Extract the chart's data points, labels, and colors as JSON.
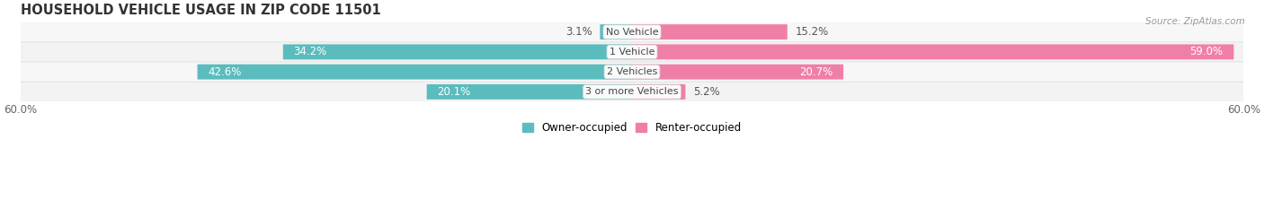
{
  "title": "HOUSEHOLD VEHICLE USAGE IN ZIP CODE 11501",
  "source": "Source: ZipAtlas.com",
  "categories": [
    "No Vehicle",
    "1 Vehicle",
    "2 Vehicles",
    "3 or more Vehicles"
  ],
  "owner_values": [
    3.1,
    34.2,
    42.6,
    20.1
  ],
  "renter_values": [
    15.2,
    59.0,
    20.7,
    5.2
  ],
  "owner_color": "#5bbcbe",
  "renter_color": "#f07fa8",
  "owner_label": "Owner-occupied",
  "renter_label": "Renter-occupied",
  "axis_limit": 60.0,
  "xlim": [
    -60,
    60
  ],
  "title_fontsize": 10.5,
  "label_fontsize": 8.5,
  "tick_fontsize": 8.5,
  "bar_height": 0.68,
  "background_color": "#ffffff",
  "row_bg_color": "#f0f0f0",
  "row_sep_color": "#dddddd"
}
